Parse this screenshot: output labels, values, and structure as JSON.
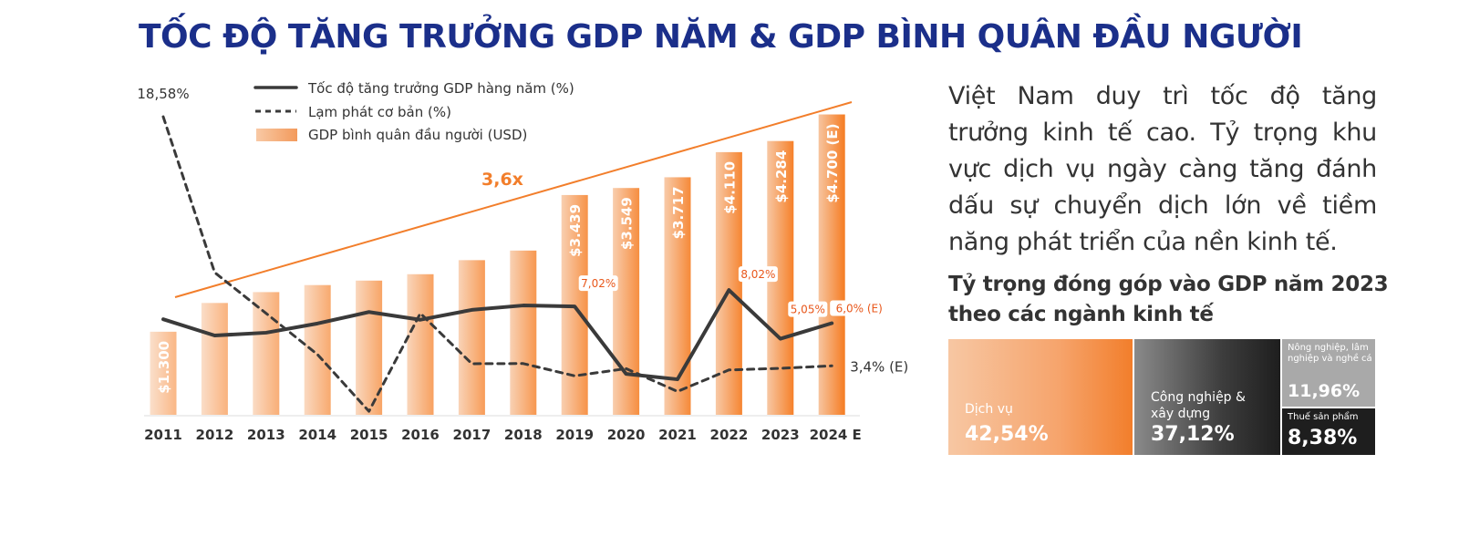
{
  "title": "TỐC ĐỘ TĂNG TRƯỞNG GDP NĂM & GDP BÌNH QUÂN ĐẦU NGƯỜI",
  "colors": {
    "title": "#1b2f8a",
    "accent": "#f27e2b",
    "dark_line": "#3a3a3a",
    "bar_light": "#f7c5a0",
    "bar_dark": "#f57c22"
  },
  "chart_data": {
    "type": "bar",
    "categories": [
      "2011",
      "2012",
      "2013",
      "2014",
      "2015",
      "2016",
      "2017",
      "2018",
      "2019",
      "2020",
      "2021",
      "2022",
      "2023",
      "2024 E"
    ],
    "series": [
      {
        "name": "GDP bình quân đầu người (USD)",
        "kind": "bar",
        "values": [
          1300,
          1750,
          1920,
          2030,
          2100,
          2200,
          2420,
          2570,
          3439,
          3549,
          3717,
          4110,
          4284,
          4700
        ],
        "value_labels": [
          "$1.300",
          "",
          "",
          "",
          "",
          "",
          "",
          "",
          "$3.439",
          "$3.549",
          "$3.717",
          "$4.110",
          "$4.284",
          "$4.700 (E)"
        ]
      },
      {
        "name": "Tốc độ tăng trưởng GDP hàng năm (%)",
        "kind": "line-solid",
        "values": [
          6.24,
          5.25,
          5.42,
          5.98,
          6.68,
          6.21,
          6.81,
          7.08,
          7.02,
          2.91,
          2.58,
          8.02,
          5.05,
          6.0
        ],
        "point_labels": [
          "",
          "",
          "",
          "",
          "",
          "",
          "",
          "",
          "7,02%",
          "",
          "",
          "8,02%",
          "5,05%",
          "6,0% (E)"
        ]
      },
      {
        "name": "Lạm phát cơ bản (%)",
        "kind": "line-dashed",
        "values": [
          18.58,
          9.09,
          6.6,
          4.09,
          0.63,
          6.6,
          3.53,
          3.54,
          2.79,
          3.23,
          1.84,
          3.15,
          3.25,
          3.4
        ],
        "point_labels": [
          "18,58%",
          "",
          "",
          "",
          "",
          "",
          "",
          "",
          "",
          "",
          "",
          "",
          "",
          "3,4% (E)"
        ]
      }
    ],
    "trend_annotation": "3,6x",
    "y_bar_range": [
      0,
      5000
    ],
    "y_line_range": [
      0,
      20
    ],
    "legend_position": "top-left",
    "grid": false
  },
  "description": "Việt Nam duy trì tốc độ tăng trưởng kinh tế cao. Tỷ trọng khu vực dịch vụ ngày càng tăng đánh dấu sự chuyển dịch lớn về tiềm năng phát triển của nền kinh tế.",
  "share": {
    "title": "Tỷ trọng đóng góp vào GDP năm 2023 theo các ngành kinh tế",
    "services": {
      "name": "Dịch vụ",
      "pct": "42,54%"
    },
    "industry": {
      "name": "Công nghiệp & xây dựng",
      "pct": "37,12%"
    },
    "agriculture": {
      "name": "Nông nghiệp, lâm nghiệp và nghề cá",
      "pct": "11,96%"
    },
    "tax": {
      "name": "Thuế sản phẩm",
      "pct": "8,38%"
    }
  }
}
